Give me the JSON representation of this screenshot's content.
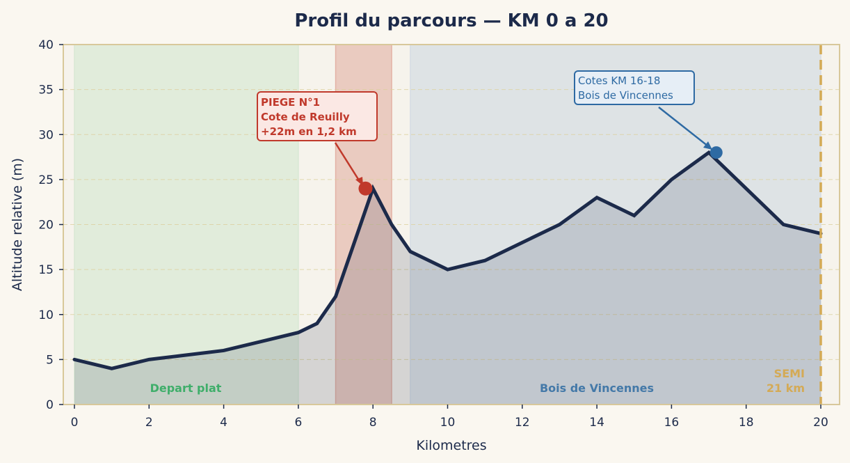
{
  "chart_data": {
    "type": "area",
    "title": "Profil du parcours — KM 0 a 20",
    "xlabel": "Kilometres",
    "ylabel": "Altitude relative (m)",
    "xlim": [
      -0.3,
      20.5
    ],
    "ylim": [
      0,
      40
    ],
    "xticks": [
      0,
      2,
      4,
      6,
      8,
      10,
      12,
      14,
      16,
      18,
      20
    ],
    "yticks": [
      0,
      5,
      10,
      15,
      20,
      25,
      30,
      35,
      40
    ],
    "grid": "horizontal dashed",
    "series": [
      {
        "name": "Altitude",
        "color": "#1c2a4a",
        "x": [
          0,
          1,
          2,
          4,
          6,
          6.5,
          7,
          8,
          8.5,
          9,
          10,
          11,
          12,
          13,
          14,
          15,
          16,
          17,
          18,
          19,
          20
        ],
        "values": [
          5,
          4,
          5,
          6,
          8,
          9,
          12,
          24,
          20,
          17,
          15,
          16,
          18,
          20,
          23,
          21,
          25,
          28,
          24,
          20,
          19
        ]
      }
    ],
    "zones": [
      {
        "name": "Depart plat",
        "x0": 0,
        "x1": 6,
        "color": "#d8e8d4",
        "label_color": "#3fae6a"
      },
      {
        "name": "Piege",
        "x0": 7,
        "x1": 8.5,
        "color": "#e3b1a4",
        "label_color": "#c0392b"
      },
      {
        "name": "Bois de Vincennes",
        "x0": 9,
        "x1": 20,
        "color": "#d6dde3",
        "label_color": "#4479a8"
      }
    ],
    "annotations": [
      {
        "text": [
          "PIEGE N°1",
          "Cote de Reuilly",
          "+22m en 1,2 km"
        ],
        "x": 7.8,
        "y": 24,
        "color": "#c0392b"
      },
      {
        "text": [
          "Cotes KM 16-18",
          "Bois de Vincennes"
        ],
        "x": 17.2,
        "y": 28,
        "color": "#2e6aa3"
      },
      {
        "text": [
          "SEMI",
          "21 km"
        ],
        "x": 20,
        "y": 0,
        "color": "#d4aa55"
      }
    ],
    "vline": {
      "x": 20,
      "color": "#d4aa55",
      "style": "dashed"
    }
  }
}
